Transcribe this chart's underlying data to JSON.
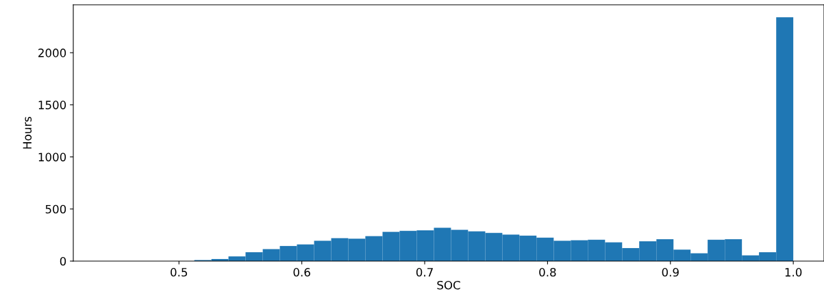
{
  "chart_data": {
    "type": "histogram",
    "xlabel": "SOC",
    "ylabel": "Hours",
    "color": "#1f77b4",
    "bins": [
      0.4985,
      0.5125,
      0.5264,
      0.5403,
      0.5542,
      0.5682,
      0.5821,
      0.596,
      0.61,
      0.6239,
      0.6378,
      0.6517,
      0.6657,
      0.6796,
      0.6935,
      0.7075,
      0.7214,
      0.7353,
      0.7493,
      0.7632,
      0.7771,
      0.791,
      0.805,
      0.8189,
      0.8328,
      0.8468,
      0.8607,
      0.8746,
      0.8886,
      0.9025,
      0.9164,
      0.9303,
      0.9443,
      0.9582,
      0.9721,
      0.9861,
      1.0
    ],
    "values": [
      null,
      10,
      20,
      45,
      85,
      115,
      145,
      160,
      195,
      220,
      215,
      240,
      280,
      290,
      295,
      320,
      300,
      285,
      270,
      255,
      245,
      225,
      195,
      200,
      205,
      180,
      125,
      190,
      210,
      110,
      75,
      205,
      210,
      55,
      85,
      2340
    ],
    "xlim": [
      0.414,
      1.025
    ],
    "xticks": [
      0.5,
      0.6,
      0.7,
      0.8,
      0.9,
      {
        "value": 1,
        "label": "1.0"
      }
    ],
    "ylim": [
      0,
      2460
    ],
    "yticks": [
      0,
      500,
      1000,
      1500,
      2000
    ],
    "grid": false
  }
}
